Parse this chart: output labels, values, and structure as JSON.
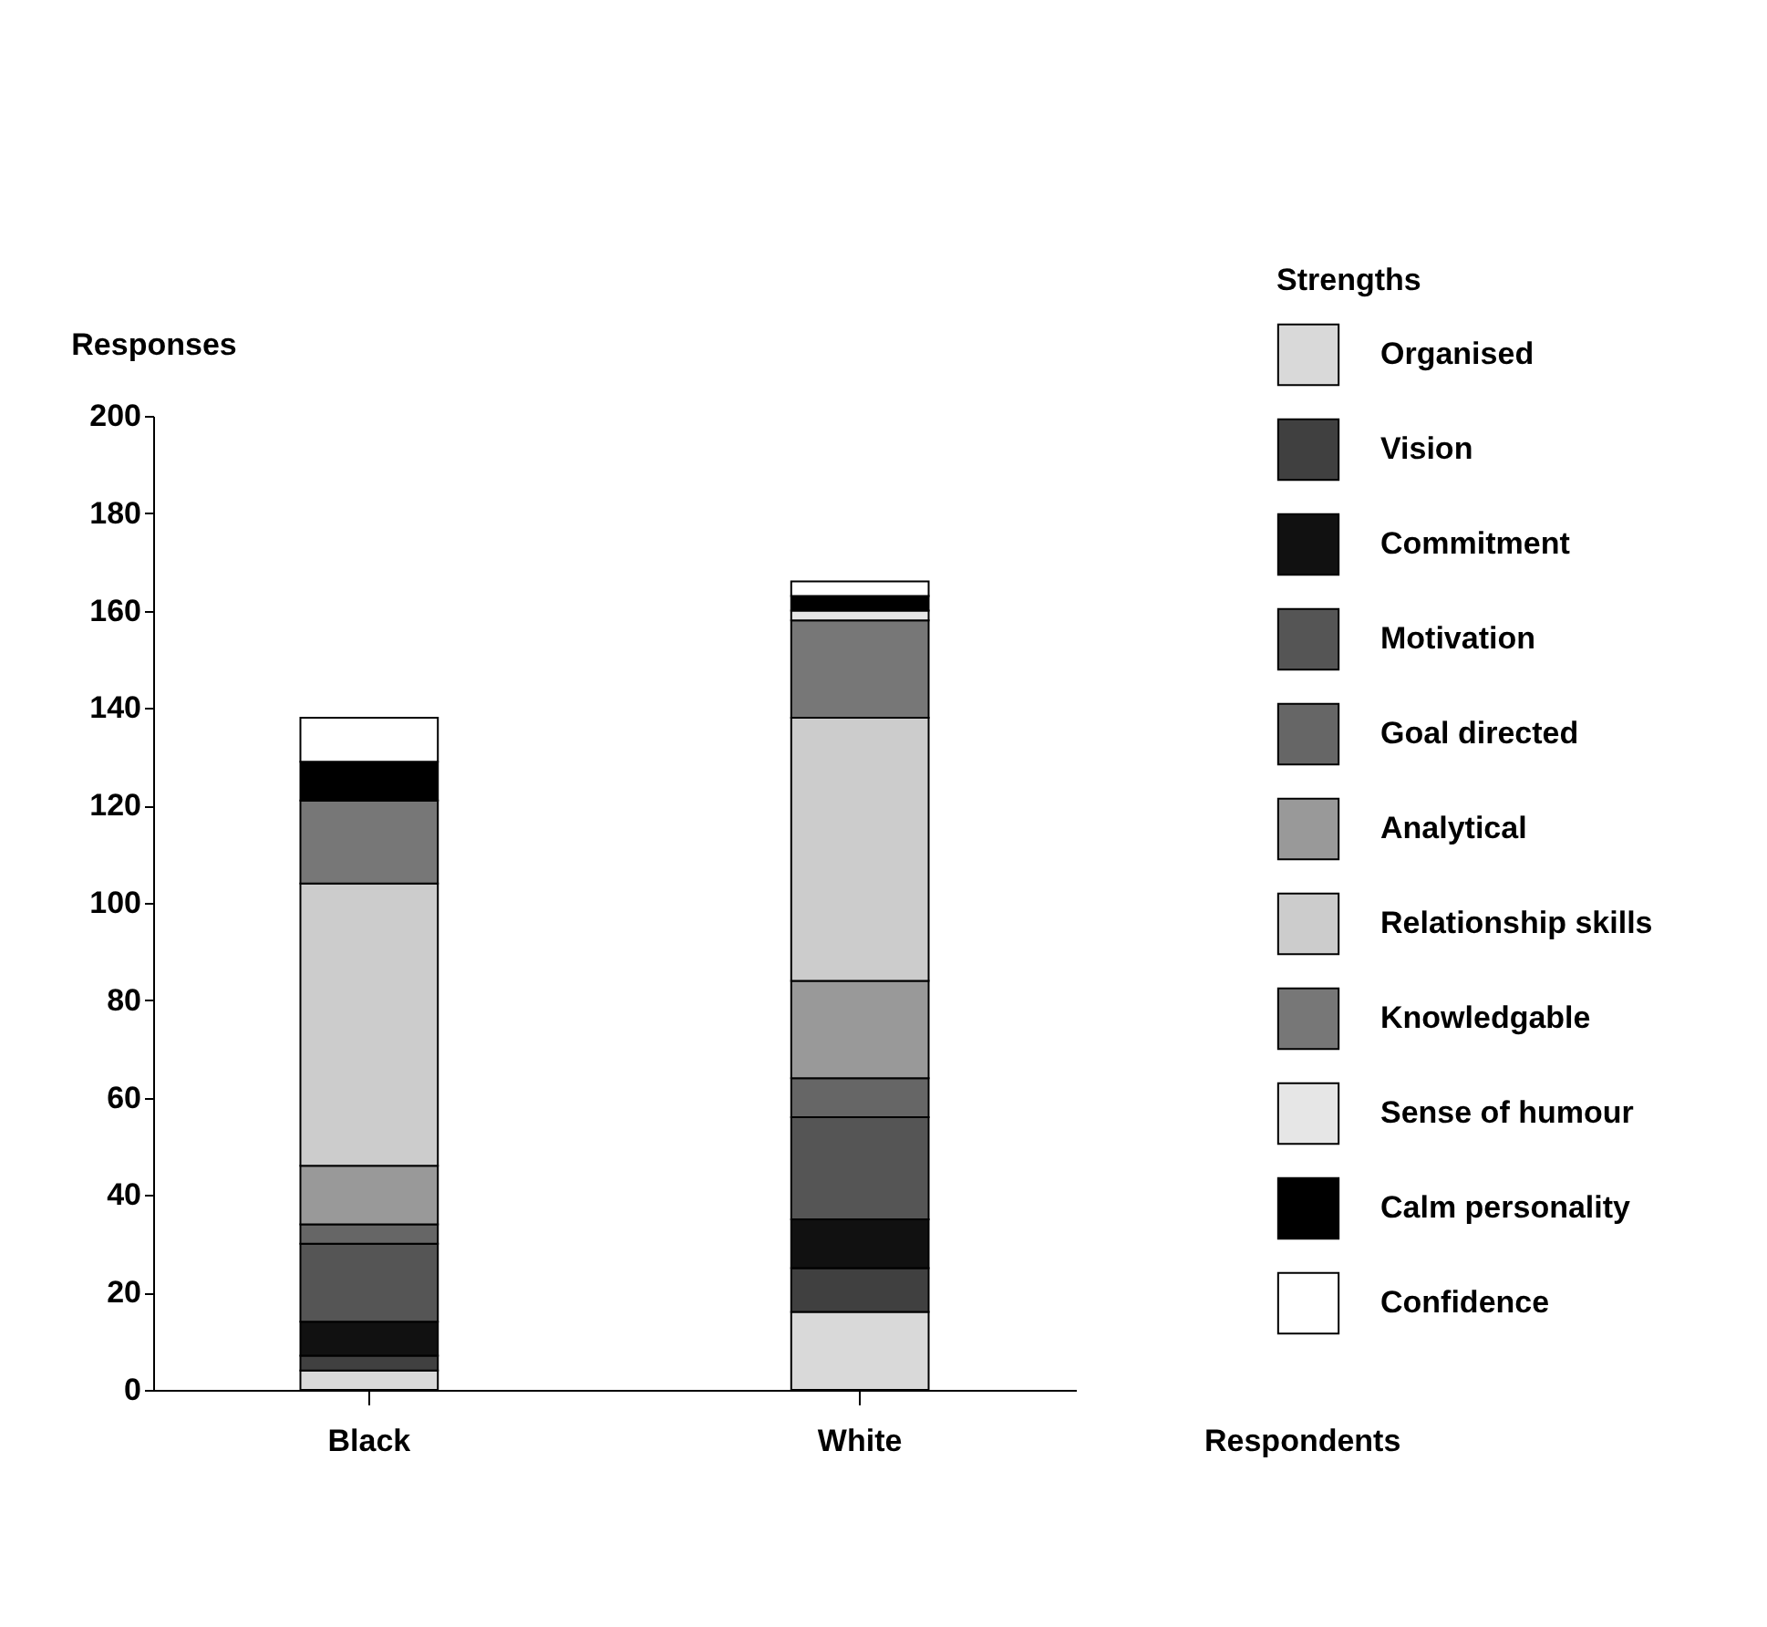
{
  "chart_data": {
    "type": "bar",
    "stacked": true,
    "xlabel": "Respondents",
    "ylabel": "Responses",
    "legend_title": "Strengths",
    "legend": "top right",
    "grid": false,
    "categories": [
      "Black",
      "White"
    ],
    "ylim": [
      0,
      200
    ],
    "yticks": [
      0,
      20,
      40,
      60,
      80,
      100,
      120,
      140,
      160,
      180,
      200
    ],
    "series": [
      {
        "name": "Organised",
        "color": "#d9d9d9",
        "values": [
          4,
          16
        ]
      },
      {
        "name": "Vision",
        "color": "#404040",
        "values": [
          3,
          9
        ]
      },
      {
        "name": "Commitment",
        "color": "#111111",
        "values": [
          7,
          10
        ]
      },
      {
        "name": "Motivation",
        "color": "#555555",
        "values": [
          16,
          21
        ]
      },
      {
        "name": "Goal directed",
        "color": "#666666",
        "values": [
          4,
          8
        ]
      },
      {
        "name": "Analytical",
        "color": "#999999",
        "values": [
          12,
          20
        ]
      },
      {
        "name": "Relationship skills",
        "color": "#cccccc",
        "values": [
          58,
          54
        ]
      },
      {
        "name": "Knowledgable",
        "color": "#777777",
        "values": [
          17,
          20
        ]
      },
      {
        "name": "Sense of humour",
        "color": "#e6e6e6",
        "values": [
          0,
          2
        ]
      },
      {
        "name": "Calm personality",
        "color": "#000000",
        "values": [
          8,
          3
        ]
      },
      {
        "name": "Confidence",
        "color": "#ffffff",
        "values": [
          9,
          3
        ]
      }
    ]
  }
}
